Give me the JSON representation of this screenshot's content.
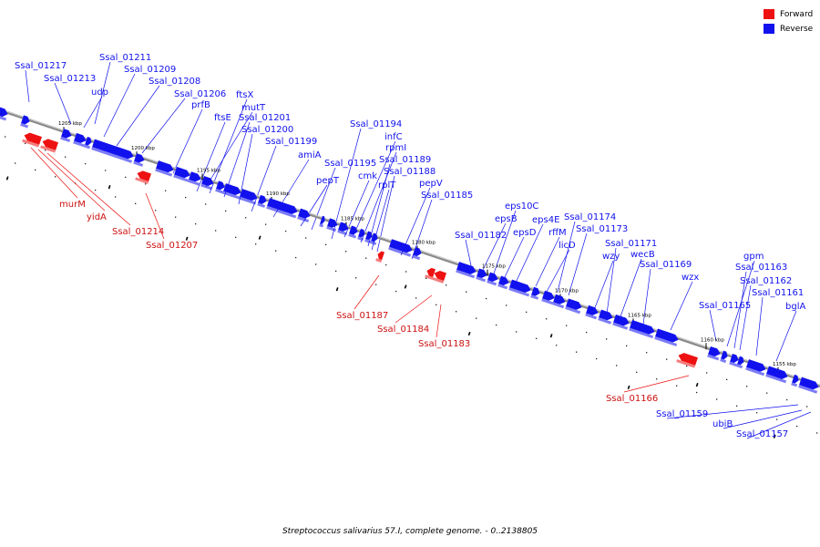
{
  "legend": [
    {
      "label": "Forward",
      "color": "#ee1111"
    },
    {
      "label": "Reverse",
      "color": "#1111ee"
    }
  ],
  "caption": "Streptococcus salivarius 57.I, complete genome. - 0..2138805",
  "colors": {
    "forward": "#ee1111",
    "reverse": "#1111ee",
    "backbone": "#8a8a8a"
  },
  "scale": {
    "unit": "kbp",
    "ticks": [
      "1205",
      "1200",
      "1195",
      "1190",
      "1185",
      "1180",
      "1175",
      "1170",
      "1165",
      "1160",
      "1155"
    ]
  },
  "reverse_genes": [
    {
      "label": "Ssal_01217"
    },
    {
      "label": "Ssal_01213"
    },
    {
      "label": "Ssal_01211"
    },
    {
      "label": "udp"
    },
    {
      "label": "Ssal_01209"
    },
    {
      "label": "Ssal_01208"
    },
    {
      "label": "Ssal_01206"
    },
    {
      "label": "prfB"
    },
    {
      "label": "ftsX"
    },
    {
      "label": "ftsE"
    },
    {
      "label": "mutT"
    },
    {
      "label": "Ssal_01201"
    },
    {
      "label": "Ssal_01200"
    },
    {
      "label": "Ssal_01199"
    },
    {
      "label": "amiA"
    },
    {
      "label": "pepT"
    },
    {
      "label": "Ssal_01195"
    },
    {
      "label": "Ssal_01194"
    },
    {
      "label": "infC"
    },
    {
      "label": "cmk"
    },
    {
      "label": "rpmI"
    },
    {
      "label": "Ssal_01189"
    },
    {
      "label": "rplT"
    },
    {
      "label": "Ssal_01188"
    },
    {
      "label": "pepV"
    },
    {
      "label": "Ssal_01185"
    },
    {
      "label": "Ssal_01182"
    },
    {
      "label": "epsB"
    },
    {
      "label": "eps10C"
    },
    {
      "label": "epsD"
    },
    {
      "label": "eps4E"
    },
    {
      "label": "rffM"
    },
    {
      "label": "licD"
    },
    {
      "label": "Ssal_01174"
    },
    {
      "label": "Ssal_01173"
    },
    {
      "label": "wzy"
    },
    {
      "label": "Ssal_01171"
    },
    {
      "label": "wecB"
    },
    {
      "label": "Ssal_01169"
    },
    {
      "label": "wzx"
    },
    {
      "label": "Ssal_01165"
    },
    {
      "label": "gpm"
    },
    {
      "label": "Ssal_01163"
    },
    {
      "label": "Ssal_01162"
    },
    {
      "label": "Ssal_01161"
    },
    {
      "label": "bglA"
    },
    {
      "label": "Ssal_01159"
    },
    {
      "label": "ubiB"
    },
    {
      "label": "Ssal_01157"
    }
  ],
  "forward_genes": [
    {
      "label": "murM"
    },
    {
      "label": "yidA"
    },
    {
      "label": "Ssal_01214"
    },
    {
      "label": "Ssal_01207"
    },
    {
      "label": "Ssal_01187"
    },
    {
      "label": "Ssal_01184"
    },
    {
      "label": "Ssal_01183"
    },
    {
      "label": "Ssal_01166"
    }
  ]
}
